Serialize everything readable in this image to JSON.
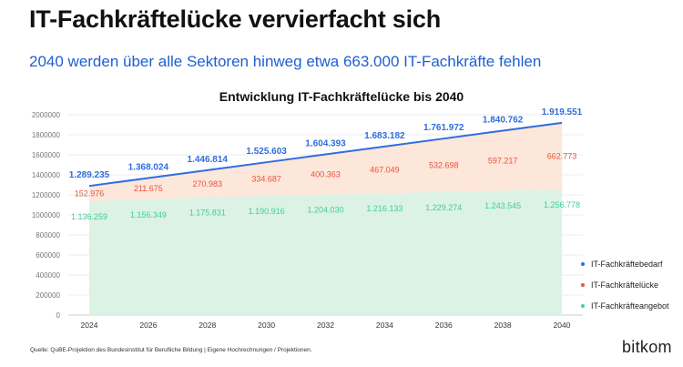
{
  "header": {
    "title": "IT-Fachkräftelücke vervierfacht sich",
    "subtitle": "2040 werden über alle Sektoren hinweg etwa 663.000 IT-Fachkräfte fehlen"
  },
  "chart_data": {
    "type": "area",
    "title": "Entwicklung IT-Fachkräftelücke bis 2040",
    "x": [
      2024,
      2026,
      2028,
      2030,
      2032,
      2034,
      2036,
      2038,
      2040
    ],
    "x_tick_labels": [
      "2024",
      "2026",
      "2028",
      "2030",
      "2032",
      "2034",
      "2036",
      "2038",
      "2040"
    ],
    "y_ticks": [
      0,
      200000,
      400000,
      600000,
      800000,
      1000000,
      1200000,
      1400000,
      1600000,
      1800000,
      2000000
    ],
    "y_tick_labels": [
      "0",
      "200000",
      "400000",
      "600000",
      "800000",
      "1000000",
      "1200000",
      "1400000",
      "1600000",
      "1800000",
      "2000000"
    ],
    "ylim": [
      0,
      2000000
    ],
    "grid": true,
    "legend_position": "right",
    "series": [
      {
        "name": "IT-Fachkräftebedarf",
        "style": "line",
        "color": "#2f6de0",
        "values": [
          1289235,
          1368024,
          1446814,
          1525603,
          1604393,
          1683182,
          1761972,
          1840762,
          1919551
        ],
        "labels": [
          "1.289.235",
          "1.368.024",
          "1.446.814",
          "1.525.603",
          "1.604.393",
          "1.683.182",
          "1.761.972",
          "1.840.762",
          "1.919.551"
        ]
      },
      {
        "name": "IT-Fachkräftelücke",
        "style": "area",
        "color": "#e8553e",
        "fill": "#fde6da",
        "values": [
          152976,
          211675,
          270983,
          334687,
          400363,
          467049,
          532698,
          597217,
          662773
        ],
        "labels": [
          "152.976",
          "211.675",
          "270.983",
          "334.687",
          "400.363",
          "467.049",
          "532.698",
          "597.217",
          "662.773"
        ]
      },
      {
        "name": "IT-Fachkräfteangebot",
        "style": "area",
        "color": "#3fcf95",
        "fill": "#dcf2e4",
        "values": [
          1136259,
          1156349,
          1175831,
          1190916,
          1204030,
          1216133,
          1229274,
          1243545,
          1256778
        ],
        "labels": [
          "1.136.259",
          "1.156.349",
          "1.175.831",
          "1.190.916",
          "1.204.030",
          "1.216.133",
          "1.229.274",
          "1.243.545",
          "1.256.778"
        ]
      }
    ]
  },
  "footer": {
    "source": "Quelle: QuBE-Projektion des Bundesinstitut für Berufliche Bildung | Eigene Hochrechnungen / Projektionen.",
    "brand": "bitkom"
  }
}
